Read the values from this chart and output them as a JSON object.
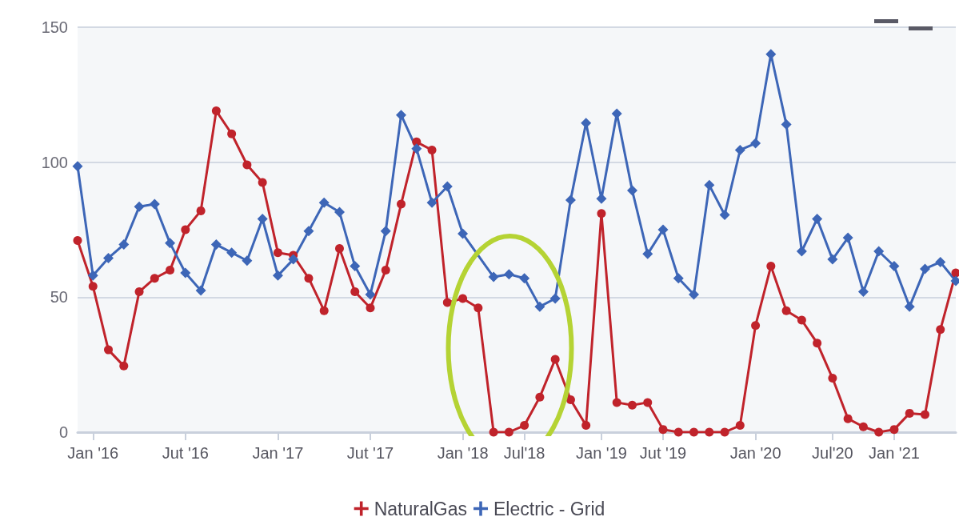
{
  "chart_data": {
    "type": "line",
    "categories": [
      null,
      "Jan '16",
      null,
      null,
      null,
      null,
      null,
      "Jut '16",
      null,
      null,
      null,
      null,
      null,
      "Jan '17",
      null,
      null,
      null,
      null,
      null,
      "Jut '17",
      null,
      null,
      null,
      null,
      null,
      "Jan '18",
      null,
      null,
      null,
      "Jul'18",
      null,
      null,
      null,
      null,
      "Jan '19",
      null,
      null,
      null,
      "Jut '19",
      null,
      null,
      null,
      null,
      null,
      "Jan '20",
      null,
      null,
      null,
      null,
      "Jul'20",
      null,
      null,
      null,
      "Jan '21",
      null,
      null,
      null,
      null
    ],
    "series": [
      {
        "name": "NaturalGas",
        "color": "#c0232b",
        "marker": "circle",
        "values": [
          71,
          54,
          30.5,
          24.5,
          52,
          57,
          60,
          75,
          82,
          119,
          110.5,
          99,
          92.5,
          66.5,
          65.5,
          57,
          45,
          68,
          52,
          46,
          60,
          84.5,
          107.5,
          104.5,
          48,
          49.5,
          46,
          0,
          0,
          2.5,
          13,
          27,
          12,
          2.5,
          81,
          11,
          10,
          11,
          1,
          0,
          0,
          0,
          0,
          2.5,
          39.5,
          61.5,
          45,
          41.5,
          33,
          20,
          5,
          2,
          0,
          1,
          7,
          6.5,
          38,
          59
        ]
      },
      {
        "name": "Electric - Grid",
        "color": "#3d66b7",
        "marker": "diamond",
        "values": [
          98.5,
          58,
          64.5,
          69.5,
          83.5,
          84.5,
          70,
          59,
          52.5,
          69.5,
          66.5,
          63.5,
          79,
          58,
          64,
          74.5,
          85,
          81.5,
          61.5,
          51,
          74.5,
          117.5,
          105,
          85,
          91,
          73.5,
          null,
          57.5,
          58.5,
          57,
          46.5,
          49.5,
          86,
          114.5,
          86.5,
          118,
          89.5,
          66,
          75,
          57,
          51,
          91.5,
          80.5,
          104.5,
          107,
          140,
          114,
          67,
          79,
          64,
          72,
          52,
          67,
          61.5,
          46.5,
          60.5,
          63,
          56
        ]
      }
    ],
    "ylim": [
      0,
      150
    ],
    "yticks": [
      0,
      50,
      100,
      150
    ],
    "grid": "y",
    "legend": "bottom",
    "line_style": "solid"
  }
}
